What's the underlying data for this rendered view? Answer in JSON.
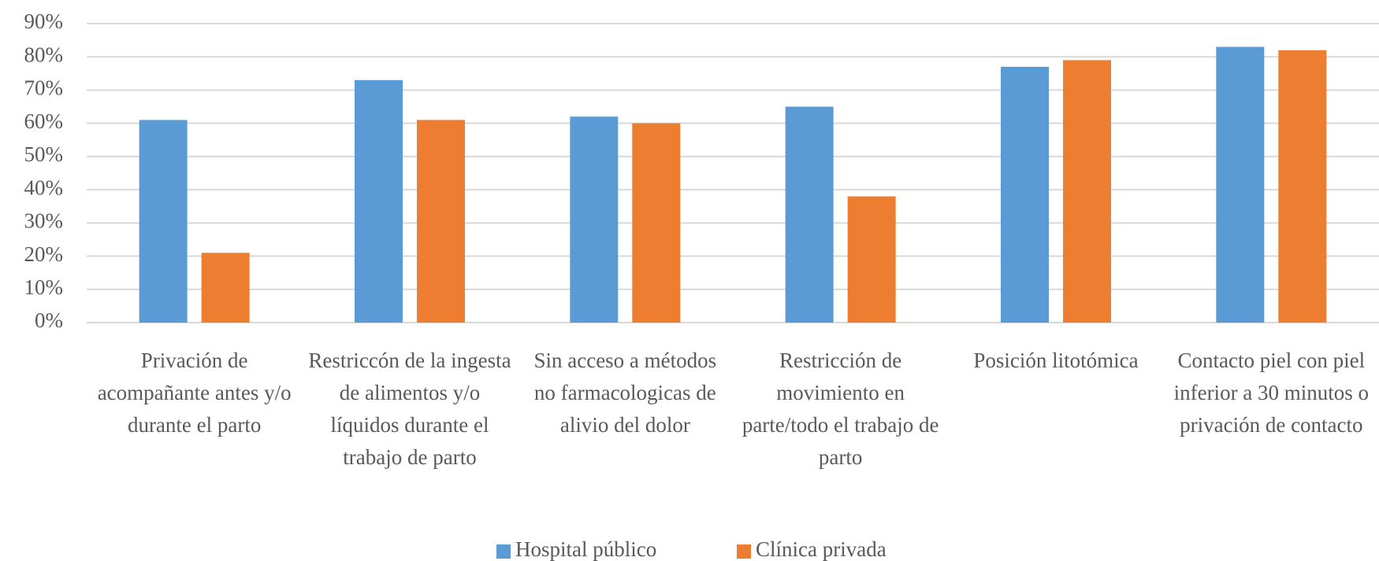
{
  "chart_data": {
    "type": "bar",
    "categories": [
      "Privación de acompañante antes y/o durante el parto",
      "Restriccón de la ingesta de alimentos y/o líquidos durante el trabajo de parto",
      "Sin acceso a métodos no farmacologicas de alivio del dolor",
      "Restricción de movimiento en parte/todo el trabajo de parto",
      "Posición litotómica",
      "Contacto piel con piel inferior a 30 minutos o privación de contacto"
    ],
    "series": [
      {
        "name": "Hospital público",
        "color": "#5b9bd5",
        "values": [
          61,
          73,
          62,
          65,
          77,
          83
        ]
      },
      {
        "name": "Clínica privada",
        "color": "#ed7d31",
        "values": [
          21,
          61,
          60,
          38,
          79,
          82
        ]
      }
    ],
    "ylim": [
      0,
      90
    ],
    "yticks": [
      {
        "value": 0,
        "label": "0%"
      },
      {
        "value": 10,
        "label": "10%"
      },
      {
        "value": 20,
        "label": "20%"
      },
      {
        "value": 30,
        "label": "30%"
      },
      {
        "value": 40,
        "label": "40%"
      },
      {
        "value": 50,
        "label": "50%"
      },
      {
        "value": 60,
        "label": "60%"
      },
      {
        "value": 70,
        "label": "70%"
      },
      {
        "value": 80,
        "label": "80%"
      },
      {
        "value": 90,
        "label": "90%"
      }
    ],
    "grid": true,
    "legend": "bottom"
  }
}
